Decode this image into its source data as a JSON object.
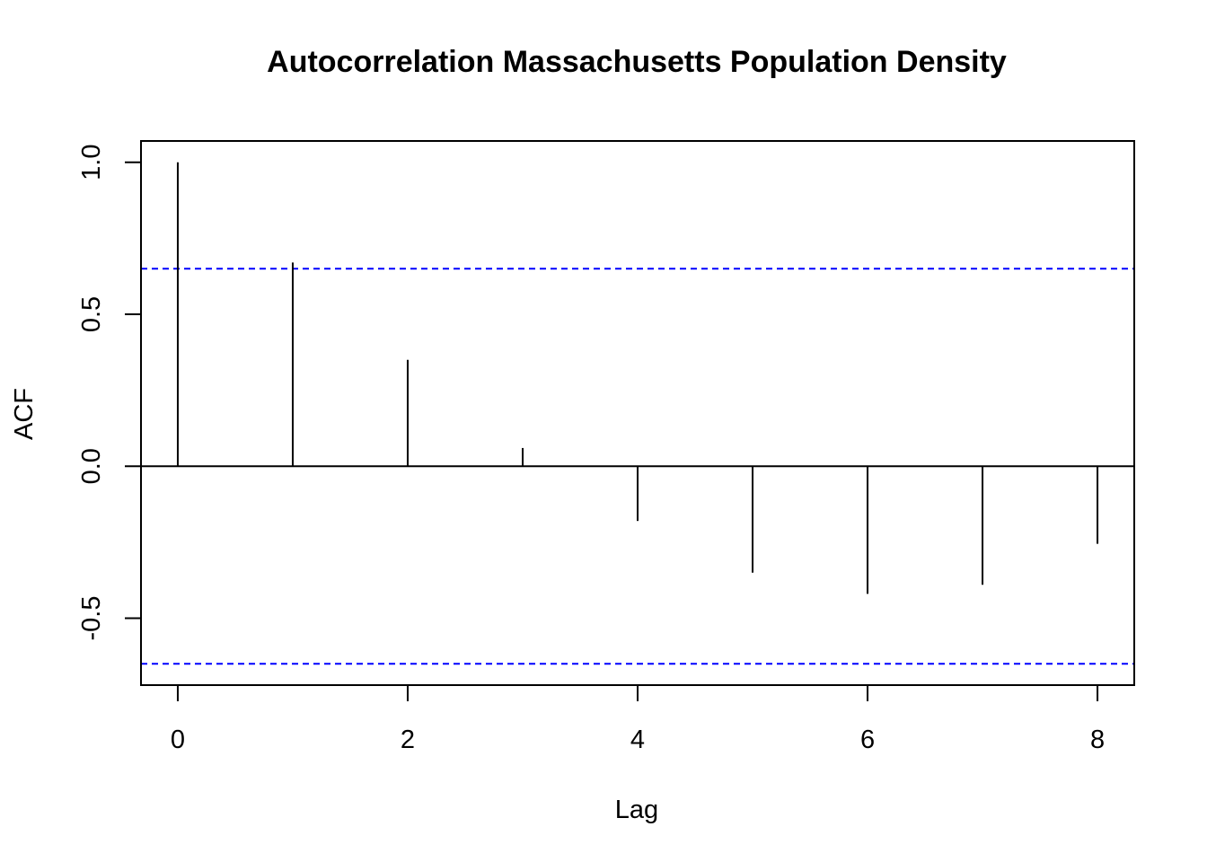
{
  "chart_data": {
    "type": "bar",
    "title": "Autocorrelation Massachusetts Population Density",
    "xlabel": "Lag",
    "ylabel": "ACF",
    "x": [
      0,
      1,
      2,
      3,
      4,
      5,
      6,
      7,
      8
    ],
    "values": [
      1.0,
      0.67,
      0.35,
      0.06,
      -0.18,
      -0.35,
      -0.42,
      -0.39,
      -0.255
    ],
    "confidence_bounds": [
      0.65,
      -0.65
    ],
    "xlim": [
      -0.32,
      8.32
    ],
    "ylim": [
      -0.72,
      1.07
    ],
    "xticks": [
      0,
      2,
      4,
      6,
      8
    ],
    "yticks": [
      -0.5,
      0.0,
      0.5,
      1.0
    ],
    "xtick_labels": [
      "0",
      "2",
      "4",
      "6",
      "8"
    ],
    "ytick_labels": [
      "-0.5",
      "0.0",
      "0.5",
      "1.0"
    ],
    "grid": false,
    "colors": {
      "bars": "#000000",
      "confidence": "#0000ff",
      "zero_line": "#000000",
      "frame": "#000000"
    }
  }
}
